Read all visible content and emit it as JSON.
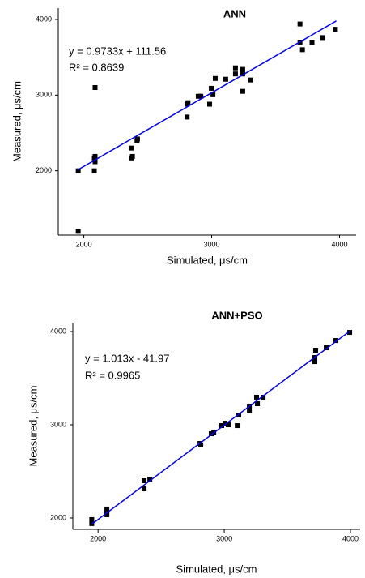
{
  "chart_data": [
    {
      "type": "scatter",
      "title": "ANN",
      "x_label": "Simulated, μs/cm",
      "y_label": "Measured, μs/cm",
      "color": "#000000",
      "x": [
        1956,
        1956,
        2082,
        2082,
        2088,
        2088,
        2088,
        2375,
        2380,
        2372,
        2416,
        2420,
        2808,
        2815,
        2808,
        2895,
        2915,
        2984,
        2997,
        3010,
        3028,
        3110,
        3186,
        3186,
        3243,
        3243,
        3243,
        3306,
        3691,
        3691,
        3710,
        3785,
        3867,
        3968
      ],
      "values": [
        1200,
        2000,
        2000,
        2170,
        2120,
        2190,
        3100,
        2170,
        2190,
        2300,
        2400,
        2420,
        2710,
        2900,
        2880,
        2985,
        2985,
        2880,
        3090,
        3005,
        3220,
        3210,
        3360,
        3280,
        3340,
        3280,
        3050,
        3200,
        3940,
        3700,
        3600,
        3700,
        3760,
        3870
      ],
      "xlim": [
        1800,
        4130
      ],
      "ylim": [
        1150,
        4150
      ],
      "xticks": [
        2000,
        3000,
        4000
      ],
      "yticks": [
        2000,
        3000,
        4000
      ],
      "trendline": {
        "color": "#0000ff",
        "equation": "y = 0.9733x + 111.56",
        "r2": "R² = 0.8639",
        "slope": 0.9733,
        "intercept": 111.56,
        "x": [
          1950,
          3975
        ]
      }
    },
    {
      "type": "scatter",
      "title": "ANN+PSO",
      "x_label": "Simulated, μs/cm",
      "y_label": "Measured, μs/cm",
      "color": "#000000",
      "x": [
        1950,
        1950,
        2070,
        2070,
        2070,
        2365,
        2365,
        2410,
        2808,
        2814,
        2897,
        2917,
        2980,
        3006,
        3032,
        3103,
        3115,
        3199,
        3199,
        3263,
        3256,
        3308,
        3718,
        3718,
        3724,
        3808,
        3885,
        3994
      ],
      "values": [
        1983,
        1940,
        2096,
        2060,
        2035,
        2400,
        2313,
        2417,
        2800,
        2783,
        2904,
        2922,
        2991,
        3017,
        3000,
        2991,
        3104,
        3200,
        3148,
        3226,
        3296,
        3296,
        3722,
        3678,
        3800,
        3826,
        3904,
        3991
      ],
      "xlim": [
        1800,
        4077
      ],
      "ylim": [
        1878,
        4096
      ],
      "xticks": [
        2000,
        3000,
        4000
      ],
      "yticks": [
        2000,
        3000,
        4000
      ],
      "trendline": {
        "color": "#0000ff",
        "equation": "y = 1.013x - 41.97",
        "r2": "R² = 0.9965",
        "slope": 1.013,
        "intercept": -41.97,
        "x": [
          1950,
          3994
        ]
      }
    }
  ]
}
